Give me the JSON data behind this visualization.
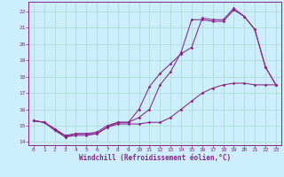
{
  "xlabel": "Windchill (Refroidissement éolien,°C)",
  "bg_color": "#cceeff",
  "grid_color": "#b0ddd0",
  "line_color": "#882288",
  "x_ticks": [
    0,
    1,
    2,
    3,
    4,
    5,
    6,
    7,
    8,
    9,
    10,
    11,
    12,
    13,
    14,
    15,
    16,
    17,
    18,
    19,
    20,
    21,
    22,
    23
  ],
  "xlim": [
    -0.5,
    23.5
  ],
  "ylim": [
    13.8,
    22.6
  ],
  "y_ticks": [
    14,
    15,
    16,
    17,
    18,
    19,
    20,
    21,
    22
  ],
  "line1_x": [
    0,
    1,
    2,
    3,
    4,
    5,
    6,
    7,
    8,
    9,
    10,
    11,
    12,
    13,
    14,
    15,
    16,
    17,
    18,
    19,
    20,
    21,
    22,
    23
  ],
  "line1_y": [
    15.3,
    15.2,
    14.7,
    14.3,
    14.4,
    14.4,
    14.5,
    14.9,
    15.1,
    15.1,
    15.1,
    15.2,
    15.2,
    15.5,
    16.0,
    16.5,
    17.0,
    17.3,
    17.5,
    17.6,
    17.6,
    17.5,
    17.5,
    17.5
  ],
  "line2_x": [
    0,
    1,
    2,
    3,
    4,
    5,
    6,
    7,
    8,
    9,
    10,
    11,
    12,
    13,
    14,
    15,
    16,
    17,
    18,
    19,
    20,
    21,
    22,
    23
  ],
  "line2_y": [
    15.3,
    15.2,
    14.8,
    14.3,
    14.5,
    14.5,
    14.6,
    15.0,
    15.2,
    15.2,
    16.0,
    17.4,
    18.2,
    18.8,
    19.4,
    19.8,
    21.6,
    21.5,
    21.5,
    22.2,
    21.7,
    20.9,
    18.6,
    17.5
  ],
  "line3_x": [
    0,
    1,
    2,
    3,
    4,
    5,
    6,
    7,
    8,
    9,
    10,
    11,
    12,
    13,
    14,
    15,
    16,
    17,
    18,
    19,
    20,
    21,
    22,
    23
  ],
  "line3_y": [
    15.3,
    15.2,
    14.8,
    14.4,
    14.5,
    14.5,
    14.5,
    14.9,
    15.2,
    15.2,
    15.5,
    16.0,
    17.5,
    18.3,
    19.5,
    21.5,
    21.5,
    21.4,
    21.4,
    22.1,
    21.7,
    20.9,
    18.6,
    17.5
  ]
}
